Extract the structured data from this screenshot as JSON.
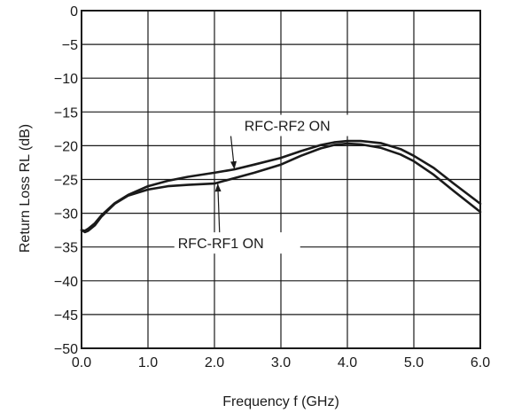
{
  "chart_data": {
    "type": "line",
    "xlabel": "Frequency f (GHz)",
    "ylabel": "Return Loss RL (dB)",
    "xlim": [
      0,
      6
    ],
    "ylim": [
      -50,
      0
    ],
    "grid": true,
    "x_ticks": [
      0,
      1,
      2,
      3,
      4,
      5,
      6
    ],
    "x_tick_labels": [
      "0.0",
      "1.0",
      "2.0",
      "3.0",
      "4.0",
      "5.0",
      "6.0"
    ],
    "y_ticks": [
      0,
      -5,
      -10,
      -15,
      -20,
      -25,
      -30,
      -35,
      -40,
      -45,
      -50
    ],
    "y_tick_labels": [
      "0",
      "−5",
      "−10",
      "−15",
      "−20",
      "−25",
      "−30",
      "−35",
      "−40",
      "−45",
      "−50"
    ],
    "line_color": "#1a1a1a",
    "series": [
      {
        "label": "RFC-RF2 ON",
        "x": [
          0,
          0.05,
          0.1,
          0.2,
          0.3,
          0.5,
          0.7,
          1.0,
          1.3,
          1.6,
          2.0,
          2.3,
          2.6,
          3.0,
          3.3,
          3.6,
          3.8,
          4.0,
          4.2,
          4.5,
          4.8,
          5.0,
          5.3,
          5.6,
          6.0
        ],
        "y": [
          -32.5,
          -32.6,
          -32.3,
          -31.5,
          -30.3,
          -28.5,
          -27.3,
          -26.0,
          -25.2,
          -24.6,
          -24.0,
          -23.5,
          -22.8,
          -21.8,
          -20.8,
          -19.9,
          -19.5,
          -19.3,
          -19.3,
          -19.6,
          -20.5,
          -21.5,
          -23.3,
          -25.6,
          -28.6
        ]
      },
      {
        "label": "RFC-RF1 ON",
        "x": [
          0,
          0.05,
          0.1,
          0.2,
          0.3,
          0.5,
          0.7,
          1.0,
          1.3,
          1.6,
          2.0,
          2.3,
          2.6,
          3.0,
          3.3,
          3.6,
          3.8,
          4.0,
          4.2,
          4.5,
          4.8,
          5.0,
          5.3,
          5.6,
          6.0
        ],
        "y": [
          -32.5,
          -32.8,
          -32.6,
          -31.8,
          -30.5,
          -28.6,
          -27.4,
          -26.5,
          -26.0,
          -25.8,
          -25.6,
          -24.8,
          -24.0,
          -22.8,
          -21.5,
          -20.4,
          -19.9,
          -19.7,
          -19.8,
          -20.3,
          -21.3,
          -22.3,
          -24.3,
          -26.7,
          -29.8
        ]
      }
    ],
    "annotations": [
      {
        "text": "RFC-RF2 ON",
        "series_index": 0,
        "x": 2.3,
        "y": -23.5,
        "text_x": 2.45,
        "text_y": -17.0
      },
      {
        "text": "RFC-RF1 ON",
        "series_index": 1,
        "x": 2.05,
        "y": -25.6,
        "text_x": 1.45,
        "text_y": -34.4
      }
    ]
  }
}
